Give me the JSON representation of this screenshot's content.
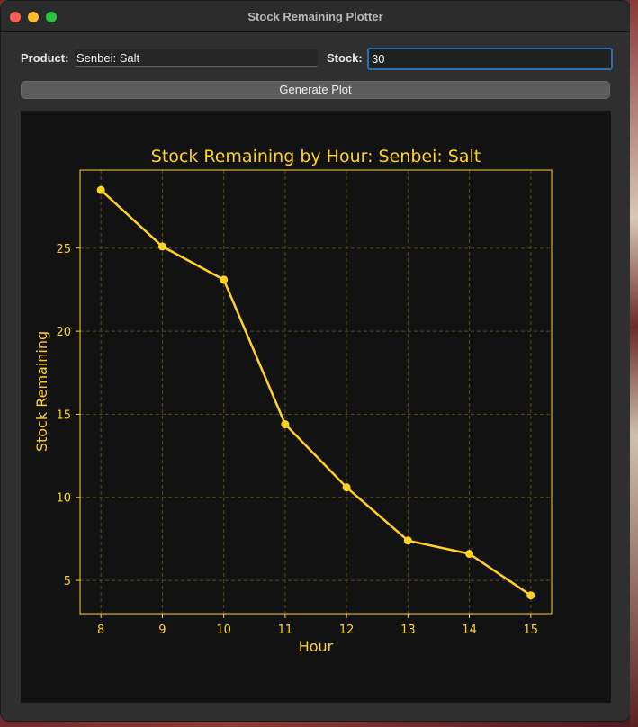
{
  "window": {
    "title": "Stock Remaining Plotter"
  },
  "form": {
    "product_label": "Product:",
    "product_value": "Senbei: Salt",
    "stock_label": "Stock:",
    "stock_value": "30",
    "generate_label": "Generate Plot"
  },
  "colors": {
    "accent": "#ffd21f",
    "plot_bg": "#121212",
    "grid": "#5a4a18",
    "focus_ring": "#2c6fb0"
  },
  "chart_data": {
    "type": "line",
    "title": "Stock Remaining by Hour: Senbei: Salt",
    "xlabel": "Hour",
    "ylabel": "Stock Remaining",
    "x": [
      8,
      9,
      10,
      11,
      12,
      13,
      14,
      15
    ],
    "series": [
      {
        "values": [
          28.5,
          25.1,
          23.1,
          14.4,
          10.6,
          7.4,
          6.6,
          4.1
        ]
      }
    ],
    "xticks": [
      8,
      9,
      10,
      11,
      12,
      13,
      14,
      15
    ],
    "yticks": [
      5,
      10,
      15,
      20,
      25
    ],
    "xlim": [
      7.66,
      15.34
    ],
    "ylim": [
      3.0,
      29.7
    ],
    "grid": true,
    "marker": "circle"
  }
}
